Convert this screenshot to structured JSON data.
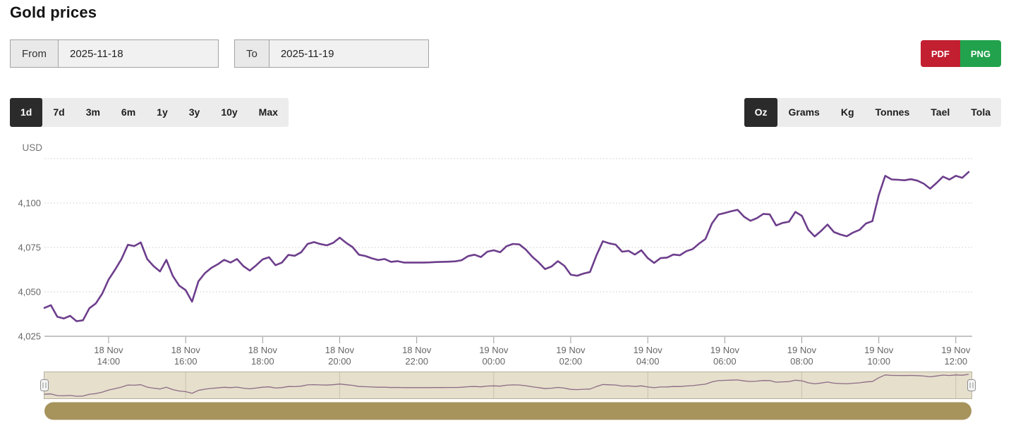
{
  "header": {
    "title": "Gold prices"
  },
  "date_range": {
    "from_label": "From",
    "from_value": "2025-11-18",
    "to_label": "To",
    "to_value": "2025-11-19"
  },
  "export": {
    "pdf_label": "PDF",
    "png_label": "PNG",
    "pdf_color": "#c21f30",
    "png_color": "#22a24c"
  },
  "range_tabs": {
    "items": [
      "1d",
      "7d",
      "3m",
      "6m",
      "1y",
      "3y",
      "10y",
      "Max"
    ],
    "active": 0,
    "active_bg": "#2b2b2b",
    "bar_bg": "#ececec"
  },
  "unit_tabs": {
    "items": [
      "Oz",
      "Grams",
      "Kg",
      "Tonnes",
      "Tael",
      "Tola"
    ],
    "active": 0,
    "active_bg": "#2b2b2b",
    "bar_bg": "#ececec"
  },
  "chart_data": {
    "type": "line",
    "title": "Gold prices",
    "ylabel": "USD",
    "currency": "USD",
    "line_color": "#6d3e8c",
    "grid": true,
    "legend": false,
    "ylim": [
      4025,
      4125
    ],
    "y_ticks": [
      {
        "value": 4025,
        "label": "4,025"
      },
      {
        "value": 4050,
        "label": "4,050"
      },
      {
        "value": 4075,
        "label": "4,075"
      },
      {
        "value": 4100,
        "label": "4,100"
      },
      {
        "value": 4125,
        "label": ""
      }
    ],
    "x_ticks": [
      {
        "line1": "18 Nov",
        "line2": "14:00",
        "pos": 0.0694
      },
      {
        "line1": "18 Nov",
        "line2": "16:00",
        "pos": 0.1528
      },
      {
        "line1": "18 Nov",
        "line2": "18:00",
        "pos": 0.2361
      },
      {
        "line1": "18 Nov",
        "line2": "20:00",
        "pos": 0.3194
      },
      {
        "line1": "18 Nov",
        "line2": "22:00",
        "pos": 0.4028
      },
      {
        "line1": "19 Nov",
        "line2": "00:00",
        "pos": 0.4861
      },
      {
        "line1": "19 Nov",
        "line2": "02:00",
        "pos": 0.5694
      },
      {
        "line1": "19 Nov",
        "line2": "04:00",
        "pos": 0.6528
      },
      {
        "line1": "19 Nov",
        "line2": "06:00",
        "pos": 0.7361
      },
      {
        "line1": "19 Nov",
        "line2": "08:00",
        "pos": 0.8194
      },
      {
        "line1": "19 Nov",
        "line2": "10:00",
        "pos": 0.9028
      },
      {
        "line1": "19 Nov",
        "line2": "12:00",
        "pos": 0.9861
      }
    ],
    "interval_minutes": 10,
    "values": [
      4041,
      4042.5,
      4036,
      4035,
      4036.5,
      4033.5,
      4034,
      4040.8,
      4043.5,
      4049,
      4057,
      4062.5,
      4068.5,
      4076.5,
      4075.8,
      4077.8,
      4068.5,
      4064.5,
      4061.5,
      4068,
      4059,
      4053.5,
      4051,
      4044.5,
      4056,
      4060.5,
      4063.5,
      4065.5,
      4068,
      4066.5,
      4068.5,
      4064.5,
      4062,
      4065,
      4068.3,
      4069.5,
      4065,
      4066.5,
      4070.8,
      4070.3,
      4072.3,
      4077,
      4078,
      4076.9,
      4076.2,
      4077.6,
      4080.5,
      4077.6,
      4075.2,
      4070.9,
      4070.2,
      4068.9,
      4067.9,
      4068.5,
      4066.9,
      4067.3,
      4066.5,
      4066.5,
      4066.5,
      4066.5,
      4066.6,
      4066.8,
      4066.9,
      4067,
      4067.2,
      4067.8,
      4070.1,
      4070.9,
      4069.6,
      4072.6,
      4073.4,
      4072.3,
      4075.7,
      4077,
      4076.7,
      4073.8,
      4069.8,
      4066.6,
      4062.8,
      4064.3,
      4067.3,
      4064.7,
      4059.7,
      4059.1,
      4060.3,
      4061.2,
      4070.5,
      4078.5,
      4077.3,
      4076.6,
      4072.6,
      4073.1,
      4071,
      4073.4,
      4069,
      4066.3,
      4069,
      4069.3,
      4071,
      4070.6,
      4072.9,
      4074.1,
      4077.2,
      4079.8,
      4088.5,
      4093.5,
      4094.4,
      4095.4,
      4096.2,
      4092.3,
      4090,
      4091.5,
      4093.9,
      4093.6,
      4087.4,
      4088.8,
      4089.5,
      4095,
      4092.8,
      4085,
      4081.2,
      4084.3,
      4087.9,
      4083.7,
      4082.3,
      4081.3,
      4083.4,
      4084.9,
      4088.5,
      4089.8,
      4104.5,
      4115.3,
      4113.3,
      4113.1,
      4112.8,
      4113.4,
      4112.6,
      4110.9,
      4108.1,
      4111.3,
      4114.9,
      4113.2,
      4115.3,
      4114.2,
      4117.5
    ]
  },
  "navigator": {
    "background": "#e5dfcc",
    "border_color": "#b8b19b",
    "grid_color": "#c9c2ab",
    "line_color": "#8d6c86",
    "handle_color": "#f5f5f5",
    "handle_border": "#8f8f8f",
    "scrollbar_color": "#a6945c"
  }
}
